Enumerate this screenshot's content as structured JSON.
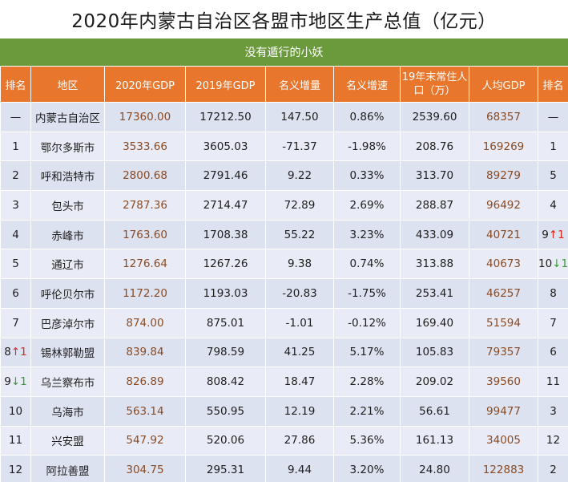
{
  "title": "2020年内蒙古自治区各盟市地区生产总值（亿元）",
  "subtitle": "没有遁行的小妖",
  "headers": {
    "rank": "排名",
    "region": "地区",
    "gdp2020": "2020年GDP",
    "gdp2019": "2019年GDP",
    "nominal_increase": "名义增量",
    "nominal_growth": "名义增速",
    "population": "19年末常住人口（万）",
    "per_capita": "人均GDP",
    "rank2": "排名"
  },
  "rows": [
    {
      "rank": "—",
      "region": "内蒙古自治区",
      "gdp2020": "17360.00",
      "gdp2019": "17212.50",
      "inc": "147.50",
      "growth": "0.86%",
      "pop": "2539.60",
      "percap": "68357",
      "rank2": "—"
    },
    {
      "rank": "1",
      "region": "鄂尔多斯市",
      "gdp2020": "3533.66",
      "gdp2019": "3605.03",
      "inc": "-71.37",
      "growth": "-1.98%",
      "pop": "208.76",
      "percap": "169269",
      "rank2": "1"
    },
    {
      "rank": "2",
      "region": "呼和浩特市",
      "gdp2020": "2800.68",
      "gdp2019": "2791.46",
      "inc": "9.22",
      "growth": "0.33%",
      "pop": "313.70",
      "percap": "89279",
      "rank2": "5"
    },
    {
      "rank": "3",
      "region": "包头市",
      "gdp2020": "2787.36",
      "gdp2019": "2714.47",
      "inc": "72.89",
      "growth": "2.69%",
      "pop": "288.87",
      "percap": "96492",
      "rank2": "4"
    },
    {
      "rank": "4",
      "region": "赤峰市",
      "gdp2020": "1763.60",
      "gdp2019": "1708.38",
      "inc": "55.22",
      "growth": "3.23%",
      "pop": "433.09",
      "percap": "40721",
      "rank2": "9",
      "rank2_arrow": "↑1",
      "rank2_dir": "up"
    },
    {
      "rank": "5",
      "region": "通辽市",
      "gdp2020": "1276.64",
      "gdp2019": "1267.26",
      "inc": "9.38",
      "growth": "0.74%",
      "pop": "313.88",
      "percap": "40673",
      "rank2": "10",
      "rank2_arrow": "↓1",
      "rank2_dir": "down"
    },
    {
      "rank": "6",
      "region": "呼伦贝尔市",
      "gdp2020": "1172.20",
      "gdp2019": "1193.03",
      "inc": "-20.83",
      "growth": "-1.75%",
      "pop": "253.41",
      "percap": "46257",
      "rank2": "8"
    },
    {
      "rank": "7",
      "region": "巴彦淖尔市",
      "gdp2020": "874.00",
      "gdp2019": "875.01",
      "inc": "-1.01",
      "growth": "-0.12%",
      "pop": "169.40",
      "percap": "51594",
      "rank2": "7"
    },
    {
      "rank": "8",
      "rank_arrow": "↑1",
      "rank_dir": "up",
      "region": "锡林郭勒盟",
      "gdp2020": "839.84",
      "gdp2019": "798.59",
      "inc": "41.25",
      "growth": "5.17%",
      "pop": "105.83",
      "percap": "79357",
      "rank2": "6"
    },
    {
      "rank": "9",
      "rank_arrow": "↓1",
      "rank_dir": "down",
      "region": "乌兰察布市",
      "gdp2020": "826.89",
      "gdp2019": "808.42",
      "inc": "18.47",
      "growth": "2.28%",
      "pop": "209.02",
      "percap": "39560",
      "rank2": "11"
    },
    {
      "rank": "10",
      "region": "乌海市",
      "gdp2020": "563.14",
      "gdp2019": "550.95",
      "inc": "12.19",
      "growth": "2.21%",
      "pop": "56.61",
      "percap": "99477",
      "rank2": "3"
    },
    {
      "rank": "11",
      "region": "兴安盟",
      "gdp2020": "547.92",
      "gdp2019": "520.06",
      "inc": "27.86",
      "growth": "5.36%",
      "pop": "161.13",
      "percap": "34005",
      "rank2": "12"
    },
    {
      "rank": "12",
      "region": "阿拉善盟",
      "gdp2020": "304.75",
      "gdp2019": "295.31",
      "inc": "9.44",
      "growth": "3.20%",
      "pop": "24.80",
      "percap": "122883",
      "rank2": "2"
    }
  ],
  "colors": {
    "header_bg": "#e8762d",
    "subtitle_bg": "#6b9a3c",
    "row_bg": "#dde2f0",
    "row_alt_bg": "#e9ecf6",
    "gdp_text": "#8a4a23",
    "up": "#d62a1a",
    "down": "#3a9a3a"
  }
}
